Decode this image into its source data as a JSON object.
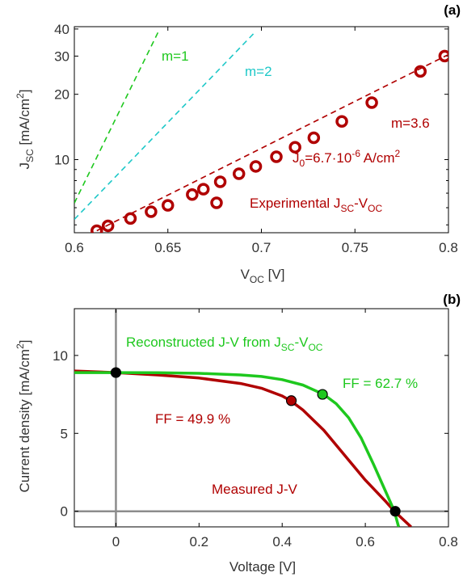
{
  "panels": {
    "a": {
      "tag": "(a)",
      "xlabel_main": "V",
      "xlabel_sub": "OC",
      "xlabel_unit": " [V]",
      "ylabel_main": "J",
      "ylabel_sub": "SC",
      "ylabel_unit": " [mA/cm",
      "ylabel_sup": "2",
      "ylabel_close": "]",
      "xticks": [
        0.6,
        0.65,
        0.7,
        0.75,
        0.8
      ],
      "xtick_labels": [
        "0.6",
        "0.65",
        "0.7",
        "0.75",
        "0.8"
      ],
      "yticks": [
        10,
        20,
        30,
        40
      ],
      "ytick_labels": [
        "10",
        "20",
        "30",
        "40"
      ],
      "label_m1": "m=1",
      "label_m2": "m=2",
      "label_m36": "m=3.6",
      "label_j0_main": "J",
      "label_j0_sub": "0",
      "label_j0_rest": "=6.7·10",
      "label_j0_exp": "-6",
      "label_j0_unit": " A/cm",
      "label_j0_unit_sup": "2",
      "legend_main": "Experimental J",
      "legend_sub1": "SC",
      "legend_mid": "-V",
      "legend_sub2": "OC"
    },
    "b": {
      "tag": "(b)",
      "xlabel": "Voltage [V]",
      "ylabel_main": "Current density [mA/cm",
      "ylabel_sup": "2",
      "ylabel_close": "]",
      "xticks": [
        0,
        0.2,
        0.4,
        0.6,
        0.8
      ],
      "xtick_labels": [
        "0",
        "0.2",
        "0.4",
        "0.6",
        "0.8"
      ],
      "yticks": [
        0,
        5,
        10
      ],
      "ytick_labels": [
        "0",
        "5",
        "10"
      ],
      "label_reconstructed_main": "Reconstructed J-V from J",
      "label_reconstructed_sub1": "SC",
      "label_reconstructed_mid": "-V",
      "label_reconstructed_sub2": "OC",
      "label_ff_green": "FF = 62.7 %",
      "label_ff_red": "FF = 49.9 %",
      "label_measured": "Measured J-V"
    }
  },
  "colors": {
    "red": "#b00000",
    "green": "#1ec81e",
    "cyan": "#1ec8c8",
    "gray": "#8c8c8c",
    "black": "#000000"
  },
  "chart_data": [
    {
      "type": "scatter",
      "panel": "a",
      "xlim": [
        0.6,
        0.8
      ],
      "ylim": [
        4.6,
        41
      ],
      "yscale": "log",
      "grid": false,
      "series": [
        {
          "name": "Experimental JSC-VOC",
          "style": "open-circle",
          "color": "red",
          "x": [
            0.612,
            0.618,
            0.63,
            0.641,
            0.65,
            0.663,
            0.669,
            0.678,
            0.688,
            0.697,
            0.708,
            0.718,
            0.728,
            0.743,
            0.759,
            0.785,
            0.798
          ],
          "y": [
            4.7,
            4.95,
            5.35,
            5.75,
            6.15,
            6.9,
            7.3,
            7.9,
            8.6,
            9.3,
            10.3,
            11.4,
            12.6,
            15.0,
            18.3,
            25.5,
            30.0
          ]
        },
        {
          "name": "m=3.6",
          "style": "dashed-line",
          "color": "red",
          "x": [
            0.612,
            0.8
          ],
          "y": [
            4.7,
            30.5
          ]
        },
        {
          "name": "m=1",
          "style": "dashed-line",
          "color": "green",
          "x": [
            0.6,
            0.645
          ],
          "y": [
            6.3,
            39.0
          ]
        },
        {
          "name": "m=2",
          "style": "dashed-line",
          "color": "cyan",
          "x": [
            0.6,
            0.697
          ],
          "y": [
            5.3,
            39.0
          ]
        }
      ]
    },
    {
      "type": "line",
      "panel": "b",
      "xlim": [
        -0.1,
        0.8
      ],
      "ylim": [
        -1.0,
        13.0
      ],
      "grid": false,
      "series": [
        {
          "name": "Measured J-V",
          "color": "red",
          "x": [
            -0.1,
            0.0,
            0.1,
            0.2,
            0.3,
            0.35,
            0.4,
            0.42,
            0.45,
            0.5,
            0.55,
            0.6,
            0.65,
            0.67,
            0.69,
            0.71
          ],
          "y": [
            9.0,
            8.9,
            8.75,
            8.55,
            8.2,
            7.9,
            7.4,
            7.1,
            6.5,
            5.2,
            3.6,
            2.0,
            0.6,
            0.0,
            -0.5,
            -1.0
          ]
        },
        {
          "name": "Reconstructed J-V from JSC-VOC",
          "color": "green",
          "x": [
            -0.1,
            0.0,
            0.1,
            0.2,
            0.3,
            0.35,
            0.4,
            0.45,
            0.5,
            0.53,
            0.56,
            0.59,
            0.62,
            0.64,
            0.66,
            0.67,
            0.68
          ],
          "y": [
            8.9,
            8.9,
            8.89,
            8.85,
            8.75,
            8.65,
            8.45,
            8.1,
            7.5,
            6.9,
            6.0,
            4.7,
            3.0,
            1.8,
            0.6,
            0.0,
            -1.0
          ]
        }
      ],
      "markers": [
        {
          "x": 0.0,
          "y": 8.9,
          "color": "black"
        },
        {
          "x": 0.422,
          "y": 7.1,
          "color": "red"
        },
        {
          "x": 0.497,
          "y": 7.5,
          "color": "green"
        },
        {
          "x": 0.672,
          "y": 0.0,
          "color": "black"
        }
      ],
      "reference_lines": {
        "x": 0,
        "y": 0
      }
    }
  ]
}
